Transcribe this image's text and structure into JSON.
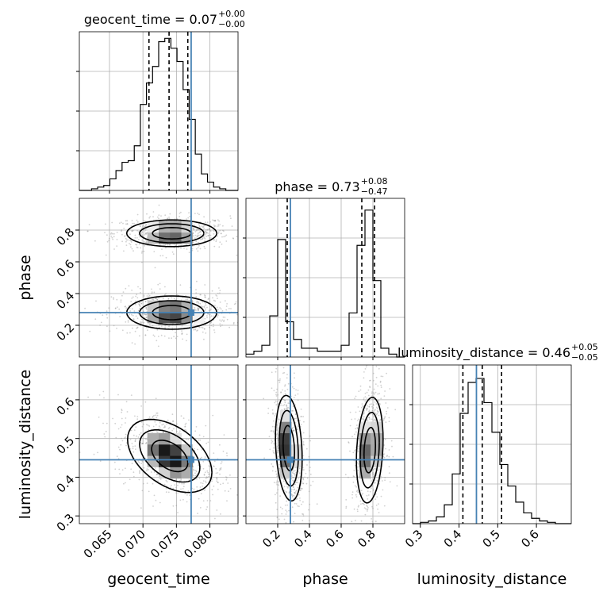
{
  "colors": {
    "truth": "#4682b4",
    "hist": "#000000",
    "grid": "#b0b0b0",
    "scatter": "#9a9a9a"
  },
  "chart_data": {
    "type": "corner",
    "parameters": [
      "geocent_time",
      "phase",
      "luminosity_distance"
    ],
    "truth_values": {
      "geocent_time": 0.0772,
      "phase": 0.28,
      "luminosity_distance": 0.445
    },
    "titles": [
      {
        "param": "geocent_time",
        "label": "geocent_time = 0.07",
        "plus": "+0.00",
        "minus": "−0.00"
      },
      {
        "param": "phase",
        "label": "phase = 0.73",
        "plus": "+0.08",
        "minus": "−0.47"
      },
      {
        "param": "luminosity_distance",
        "label": "luminosity_distance = 0.46",
        "plus": "+0.05",
        "minus": "−0.05"
      }
    ],
    "axes": {
      "geocent_time": {
        "range": [
          0.0605,
          0.0842
        ],
        "ticks": [
          "0.065",
          "0.070",
          "0.075",
          "0.080"
        ],
        "tick_values": [
          0.065,
          0.07,
          0.075,
          0.08
        ]
      },
      "phase": {
        "range": [
          0.0,
          1.0
        ],
        "ticks": [
          "0.2",
          "0.4",
          "0.6",
          "0.8"
        ],
        "tick_values": [
          0.2,
          0.4,
          0.6,
          0.8
        ]
      },
      "luminosity_distance": {
        "range": [
          0.28,
          0.69
        ],
        "ticks": [
          "0.3",
          "0.4",
          "0.5",
          "0.6"
        ],
        "tick_values": [
          0.3,
          0.4,
          0.5,
          0.6
        ]
      }
    },
    "diagonal": [
      {
        "param": "geocent_time",
        "bins": [
          0.0605,
          0.0842
        ],
        "counts": [
          0,
          0,
          1,
          2,
          3,
          7,
          12,
          17,
          18,
          27,
          52,
          65,
          75,
          90,
          92,
          86,
          78,
          61,
          43,
          22,
          10,
          5,
          2,
          1,
          0,
          0
        ],
        "quantiles": [
          0.0709,
          0.0739,
          0.0767
        ],
        "ymax": 96
      },
      {
        "param": "phase",
        "bins": [
          0.0,
          1.0
        ],
        "counts": [
          1,
          2,
          4,
          14,
          40,
          12,
          6,
          3,
          3,
          2,
          2,
          2,
          4,
          15,
          38,
          50,
          26,
          3,
          1,
          0
        ],
        "quantiles": [
          0.26,
          0.73,
          0.81
        ],
        "ymax": 54
      },
      {
        "param": "luminosity_distance",
        "bins": [
          0.28,
          0.69
        ],
        "counts": [
          0,
          1,
          2,
          5,
          14,
          37,
          82,
          105,
          108,
          90,
          68,
          44,
          28,
          16,
          8,
          4,
          2,
          1,
          0,
          0
        ],
        "quantiles": [
          0.41,
          0.46,
          0.51
        ],
        "ymax": 118
      }
    ],
    "pairs": [
      {
        "x": "geocent_time",
        "y": "phase",
        "clusters": [
          {
            "x": 0.0743,
            "y": 0.78,
            "sx": 0.0032,
            "sy": 0.04
          },
          {
            "x": 0.0743,
            "y": 0.28,
            "sx": 0.0032,
            "sy": 0.05
          }
        ]
      },
      {
        "x": "geocent_time",
        "y": "luminosity_distance",
        "clusters": [
          {
            "x": 0.074,
            "y": 0.455,
            "sx": 0.003,
            "sy": 0.045,
            "rho": -0.45
          }
        ]
      },
      {
        "x": "phase",
        "y": "luminosity_distance",
        "clusters": [
          {
            "x": 0.27,
            "y": 0.475,
            "sx": 0.04,
            "sy": 0.065,
            "rho": -0.2
          },
          {
            "x": 0.78,
            "y": 0.47,
            "sx": 0.04,
            "sy": 0.065,
            "rho": 0.2
          }
        ]
      }
    ],
    "grid": true
  }
}
